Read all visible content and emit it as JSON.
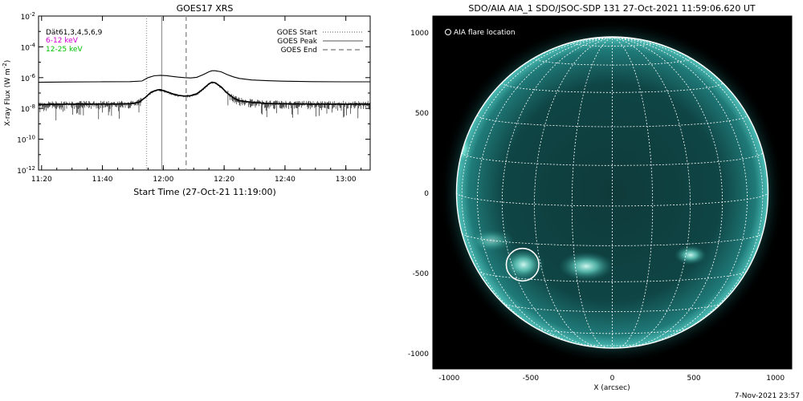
{
  "left_panel": {
    "title": "GOES17 XRS",
    "ylabel": "X-ray Flux (W m",
    "ylabel_sup": "-2",
    "ylabel_close": ")",
    "xlabel": "Start Time (27-Oct-21 11:19:00)",
    "info_lines": [
      {
        "text": "Dät61,3,4,5,6,9",
        "color": "#000000"
      },
      {
        "text": "6-12 keV",
        "color": "#d000d0"
      },
      {
        "text": "12-25 keV",
        "color": "#00c000"
      }
    ],
    "legend": [
      {
        "label": "GOES Start",
        "style": "dotted"
      },
      {
        "label": "GOES Peak",
        "style": "solid"
      },
      {
        "label": "GOES End",
        "style": "dashed"
      }
    ]
  },
  "right_panel": {
    "title": "SDO/AIA AIA_1 SDO/JSOC-SDP 131 27-Oct-2021 11:59:06.620 UT",
    "legend_label": "AIA flare location",
    "xlabel": "X (arcsec)",
    "footer_date": "7-Nov-2021 23:57"
  },
  "chart_data": [
    {
      "type": "line",
      "title": "GOES17 XRS",
      "xlabel": "Start Time (27-Oct-21 11:19:00)",
      "ylabel": "X-ray Flux (W m-2)",
      "x_unit": "minutes after 11:19:00",
      "xlim": [
        0,
        109
      ],
      "ylog": true,
      "ylim_exponent": [
        -12,
        -2
      ],
      "x_ticks": [
        {
          "t": 1,
          "label": "11:20"
        },
        {
          "t": 21,
          "label": "11:40"
        },
        {
          "t": 41,
          "label": "12:00"
        },
        {
          "t": 61,
          "label": "12:20"
        },
        {
          "t": 81,
          "label": "12:40"
        },
        {
          "t": 101,
          "label": "13:00"
        }
      ],
      "y_ticks": [
        {
          "exp": -2,
          "label": "10",
          "sup": "-2"
        },
        {
          "exp": -4,
          "label": "10",
          "sup": "-4"
        },
        {
          "exp": -6,
          "label": "10",
          "sup": "-6"
        },
        {
          "exp": -8,
          "label": "10",
          "sup": "-8"
        },
        {
          "exp": -10,
          "label": "10",
          "sup": "-10"
        },
        {
          "exp": -12,
          "label": "10",
          "sup": "-12"
        }
      ],
      "event_lines": [
        {
          "name": "GOES Start",
          "t": 35.5,
          "style": "dotted"
        },
        {
          "name": "GOES Peak",
          "t": 40.5,
          "style": "solid"
        },
        {
          "name": "GOES End",
          "t": 48.5,
          "style": "dashed"
        }
      ],
      "series": [
        {
          "name": "",
          "x": [
            0,
            10,
            20,
            30,
            34,
            36,
            38,
            40,
            42,
            44,
            46,
            48,
            50,
            52,
            54,
            56,
            57,
            58,
            60,
            62,
            64,
            66,
            70,
            75,
            80,
            90,
            100,
            109
          ],
          "log_flux": [
            -6.3,
            -6.28,
            -6.27,
            -6.26,
            -6.22,
            -6.0,
            -5.88,
            -5.85,
            -5.87,
            -5.92,
            -5.97,
            -6.0,
            -6.02,
            -5.98,
            -5.82,
            -5.62,
            -5.55,
            -5.55,
            -5.62,
            -5.8,
            -5.95,
            -6.05,
            -6.15,
            -6.2,
            -6.23,
            -6.26,
            -6.27,
            -6.27
          ]
        },
        {
          "name": "",
          "x": [
            0,
            10,
            20,
            30,
            33,
            35,
            37,
            39,
            40,
            42,
            44,
            46,
            48,
            50,
            52,
            54,
            56,
            57,
            58,
            60,
            62,
            64,
            66,
            70,
            75,
            80,
            90,
            100,
            109
          ],
          "log_flux": [
            -7.75,
            -7.72,
            -7.72,
            -7.7,
            -7.6,
            -7.3,
            -6.95,
            -6.8,
            -6.78,
            -6.9,
            -7.05,
            -7.15,
            -7.2,
            -7.17,
            -7.05,
            -6.75,
            -6.4,
            -6.3,
            -6.33,
            -6.6,
            -7.0,
            -7.3,
            -7.5,
            -7.6,
            -7.68,
            -7.7,
            -7.72,
            -7.72,
            -7.72
          ]
        }
      ]
    },
    {
      "type": "scatter",
      "title": "SDO/AIA AIA_1 SDO/JSOC-SDP 131 27-Oct-2021 11:59:06.620 UT",
      "xlabel": "X (arcsec)",
      "xlim": [
        -1100,
        1100
      ],
      "ylim": [
        -1100,
        1100
      ],
      "x_ticks": [
        -1000,
        -500,
        0,
        500,
        1000
      ],
      "y_ticks": [
        1000,
        500,
        0,
        -500,
        -1000
      ],
      "solar_radius": 970,
      "flare_location": {
        "x": -550,
        "y": -450,
        "radius": 100
      }
    }
  ]
}
